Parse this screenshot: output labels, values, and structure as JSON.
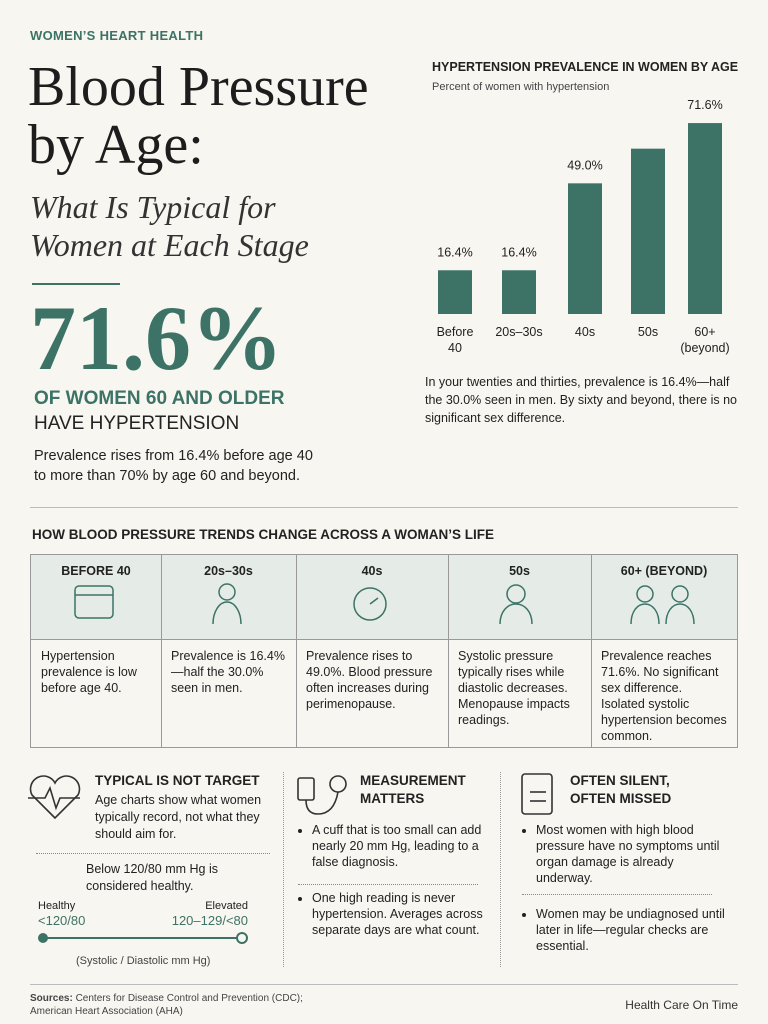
{
  "header": {
    "kicker": "WOMEN’S HEART HEALTH",
    "title": "Blood Pressure by Age:",
    "subtitle": "What Is Typical for Women at Each Stage"
  },
  "stat": {
    "value": "71.6%",
    "line_1": "OF WOMEN 60 AND OLDER",
    "line_2": "HAVE HYPERTENSION",
    "text": "Prevalence rises from 16.4% before age 40 to more than 70% by age 60 and beyond."
  },
  "chart_data": {
    "type": "bar",
    "title": "HYPERTENSION PREVALENCE IN WOMEN BY AGE",
    "subtitle": "Percent of women with hypertension",
    "categories": [
      "Before 40",
      "20s–30s",
      "40s",
      "50s",
      "60+ (beyond)"
    ],
    "values": [
      16.4,
      16.4,
      49.0,
      62,
      71.6
    ],
    "value_labels": [
      "16.4%",
      "16.4%",
      "49.0%",
      null,
      "71.6%"
    ],
    "color": "#3d7367",
    "ylim": [
      0,
      75
    ],
    "note": "In your twenties and thirties, prevalence is 16.4%—half the 30.0% seen in men. By sixty and beyond, there is no significant sex difference."
  },
  "trends": {
    "title": "HOW BLOOD PRESSURE TRENDS CHANGE ACROSS A WOMAN’S LIFE",
    "columns": [
      {
        "heading": "BEFORE 40",
        "text": "Hypertension prevalence is low before age 40."
      },
      {
        "heading": "20s–30s",
        "text": "Prevalence is 16.4%—half the 30.0% seen in men."
      },
      {
        "heading": "40s",
        "text": "Prevalence rises to 49.0%. Blood pressure often increases during perimenopause."
      },
      {
        "heading": "50s",
        "text": "Systolic pressure typically rises while diastolic decreases. Menopause impacts readings."
      },
      {
        "heading": "60+ (BEYOND)",
        "text": "Prevalence reaches 71.6%. No significant sex difference. Isolated systolic hypertension becomes common."
      }
    ]
  },
  "cards": [
    {
      "title": "TYPICAL IS NOT TARGET",
      "text": "Age charts show what women typically record, not what they should aim for.",
      "note": "Below 120/80 mm Hg is considered healthy.",
      "scale": {
        "left_label": "Healthy",
        "left_value": "<120/80",
        "right_label": "Elevated",
        "right_value": "120–129/<80",
        "caption": "(Systolic / Diastolic mm Hg)"
      }
    },
    {
      "title": "MEASUREMENT MATTERS",
      "bullets": [
        "A cuff that is too small can add nearly 20 mm Hg, leading to a false diagnosis.",
        "One high reading is never hypertension. Averages across separate days are what count."
      ]
    },
    {
      "title": "OFTEN SILENT, OFTEN MISSED",
      "bullets": [
        "Most women with high blood pressure have no symptoms until organ damage is already underway.",
        "Women may be undiagnosed until later in life—regular checks are essential."
      ]
    }
  ],
  "footer": {
    "sources_label": "Sources:",
    "sources": "Centers for Disease Control and Prevention (CDC); American Heart Association (AHA)",
    "brand": "Health Care On Time"
  }
}
